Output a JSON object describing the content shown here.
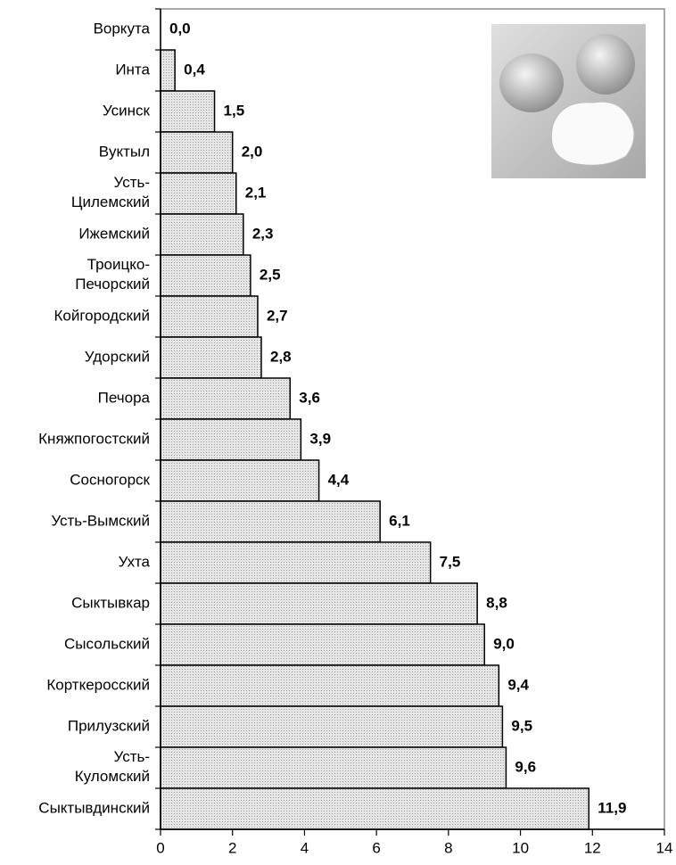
{
  "chart_data": {
    "type": "bar",
    "orientation": "horizontal",
    "categories": [
      "Воркута",
      "Инта",
      "Усинск",
      "Вуктыл",
      "Усть-Цилемский",
      "Ижемский",
      "Троицко-Печорский",
      "Койгородский",
      "Удорский",
      "Печора",
      "Княжпогостский",
      "Сосногорск",
      "Усть-Вымский",
      "Ухта",
      "Сыктывкар",
      "Сысольский",
      "Корткеросский",
      "Прилузский",
      "Усть-Куломский",
      "Сыктывдинский"
    ],
    "values": [
      0.0,
      0.4,
      1.5,
      2.0,
      2.1,
      2.3,
      2.5,
      2.7,
      2.8,
      3.6,
      3.9,
      4.4,
      6.1,
      7.5,
      8.8,
      9.0,
      9.4,
      9.5,
      9.6,
      11.9
    ],
    "value_labels": [
      "0,0",
      "0,4",
      "1,5",
      "2,0",
      "2,1",
      "2,3",
      "2,5",
      "2,7",
      "2,8",
      "3,6",
      "3,9",
      "4,4",
      "6,1",
      "7,5",
      "8,8",
      "9,0",
      "9,4",
      "9,5",
      "9,6",
      "11,9"
    ],
    "color": "#d4d4d4",
    "xlim": [
      0,
      14
    ],
    "xticks": [
      0,
      2,
      4,
      6,
      8,
      10,
      12,
      14
    ]
  }
}
